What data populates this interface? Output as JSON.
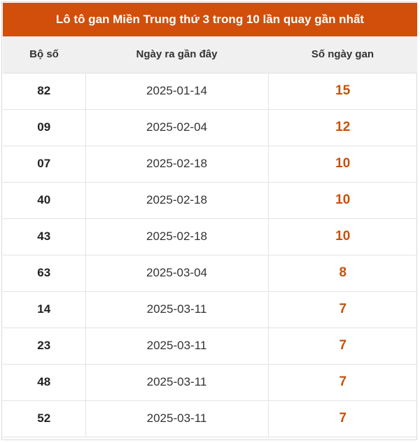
{
  "title": "Lô tô gan Miền Trung thứ 3 trong 10 lần quay gần nhất",
  "columns": [
    "Bộ số",
    "Ngày ra gần đây",
    "Số ngày gan"
  ],
  "rows": [
    {
      "number": "82",
      "date": "2025-01-14",
      "days": "15"
    },
    {
      "number": "09",
      "date": "2025-02-04",
      "days": "12"
    },
    {
      "number": "07",
      "date": "2025-02-18",
      "days": "10"
    },
    {
      "number": "40",
      "date": "2025-02-18",
      "days": "10"
    },
    {
      "number": "43",
      "date": "2025-02-18",
      "days": "10"
    },
    {
      "number": "63",
      "date": "2025-03-04",
      "days": "8"
    },
    {
      "number": "14",
      "date": "2025-03-11",
      "days": "7"
    },
    {
      "number": "23",
      "date": "2025-03-11",
      "days": "7"
    },
    {
      "number": "48",
      "date": "2025-03-11",
      "days": "7"
    },
    {
      "number": "52",
      "date": "2025-03-11",
      "days": "7"
    }
  ],
  "colors": {
    "title_bg": "#d14f0a",
    "days_text": "#c8500a",
    "header_bg": "#f0f0f0"
  }
}
